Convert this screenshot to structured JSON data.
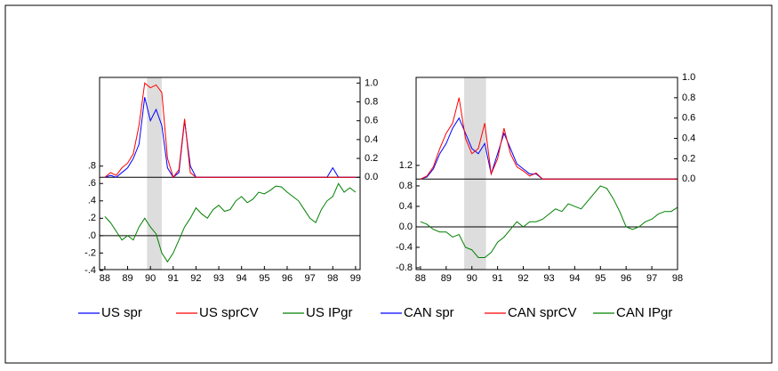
{
  "chart_data": [
    {
      "type": "line",
      "x": [
        88,
        88.25,
        88.5,
        88.75,
        89,
        89.25,
        89.5,
        89.75,
        90,
        90.25,
        90.5,
        90.75,
        91,
        91.25,
        91.5,
        91.75,
        92,
        92.25,
        92.5,
        92.75,
        93,
        93.25,
        93.5,
        93.75,
        94,
        94.25,
        94.5,
        94.75,
        95,
        95.25,
        95.5,
        95.75,
        96,
        96.25,
        96.5,
        96.75,
        97,
        97.25,
        97.5,
        97.75,
        98,
        98.25,
        98.5,
        98.75,
        99
      ],
      "xlim": [
        87.77,
        99.2
      ],
      "xticks": [
        88,
        89,
        90,
        91,
        92,
        93,
        94,
        95,
        96,
        97,
        98,
        99
      ],
      "ylim": [
        -0.39,
        1.82
      ],
      "yticks": [
        {
          "value": -0.4,
          "label": "-.4"
        },
        {
          "value": -0.2,
          "label": "-.2"
        },
        {
          "value": 0,
          "label": ".0"
        },
        {
          "value": 0.2,
          "label": ".2"
        },
        {
          "value": 0.4,
          "label": ".4"
        },
        {
          "value": 0.6,
          "label": ".6"
        },
        {
          "value": 0.8,
          "label": ".8"
        }
      ],
      "y2lim": [
        -0.98,
        1.06
      ],
      "y2ticks": [
        {
          "value": 0,
          "label": "0.0"
        },
        0.2,
        0.4,
        0.6,
        0.8,
        {
          "value": 1,
          "label": "1.0"
        }
      ],
      "shade": [
        89.85,
        90.5
      ],
      "series": [
        {
          "name": "US spr",
          "color": "#0000ff",
          "axis": "y2",
          "values": [
            0,
            0.02,
            0,
            0.05,
            0.1,
            0.2,
            0.35,
            0.85,
            0.6,
            0.72,
            0.55,
            0.1,
            0,
            0.05,
            0.6,
            0.12,
            0,
            0,
            0,
            0,
            0,
            0,
            0,
            0,
            0,
            0,
            0,
            0,
            0,
            0,
            0,
            0,
            0,
            0,
            0,
            0,
            0,
            0,
            0,
            0,
            0.1,
            0,
            0,
            0,
            0
          ]
        },
        {
          "name": "US sprCV",
          "color": "#ff0000",
          "axis": "y2",
          "values": [
            0,
            0.05,
            0.02,
            0.1,
            0.15,
            0.25,
            0.55,
            1.0,
            0.95,
            0.98,
            0.9,
            0.2,
            0,
            0.08,
            0.62,
            0.05,
            0,
            0,
            0,
            0,
            0,
            0,
            0,
            0,
            0,
            0,
            0,
            0,
            0,
            0,
            0,
            0,
            0,
            0,
            0,
            0,
            0,
            0,
            0,
            0,
            0,
            0,
            0,
            0,
            0
          ]
        },
        {
          "name": "US IPgr",
          "color": "#008000",
          "values": [
            0.22,
            0.15,
            0.05,
            -0.05,
            0,
            -0.05,
            0.1,
            0.2,
            0.1,
            0.02,
            -0.2,
            -0.3,
            -0.2,
            -0.05,
            0.1,
            0.2,
            0.32,
            0.25,
            0.2,
            0.3,
            0.35,
            0.28,
            0.3,
            0.4,
            0.45,
            0.38,
            0.42,
            0.5,
            0.48,
            0.52,
            0.57,
            0.56,
            0.5,
            0.45,
            0.4,
            0.3,
            0.2,
            0.15,
            0.3,
            0.4,
            0.45,
            0.6,
            0.5,
            0.55,
            0.5
          ]
        }
      ]
    },
    {
      "type": "line",
      "x": [
        88,
        88.25,
        88.5,
        88.75,
        89,
        89.25,
        89.5,
        89.75,
        90,
        90.25,
        90.5,
        90.75,
        91,
        91.25,
        91.5,
        91.75,
        92,
        92.25,
        92.5,
        92.75,
        93,
        93.25,
        93.5,
        93.75,
        94,
        94.25,
        94.5,
        94.75,
        95,
        95.25,
        95.5,
        95.75,
        96,
        96.25,
        96.5,
        96.75,
        97,
        97.25,
        97.5,
        97.75,
        98
      ],
      "xlim": [
        87.83,
        98.0
      ],
      "xticks": [
        88,
        89,
        90,
        91,
        92,
        93,
        94,
        95,
        96,
        97,
        98
      ],
      "ylim": [
        -0.835,
        2.92
      ],
      "yticks": [
        -0.8,
        -0.4,
        {
          "value": 0,
          "label": "0.0"
        },
        0.4,
        0.8,
        1.2
      ],
      "y2lim": [
        -0.89,
        1.0
      ],
      "y2ticks": [
        {
          "value": 0,
          "label": "0.0"
        },
        0.2,
        0.4,
        0.6,
        0.8,
        {
          "value": 1,
          "label": "1.0"
        }
      ],
      "shade": [
        89.7,
        90.55
      ],
      "series": [
        {
          "name": "CAN spr",
          "color": "#0000ff",
          "axis": "y2",
          "values": [
            0,
            0.02,
            0.1,
            0.25,
            0.35,
            0.5,
            0.6,
            0.45,
            0.3,
            0.25,
            0.35,
            0.05,
            0.25,
            0.45,
            0.3,
            0.15,
            0.1,
            0.05,
            0.05,
            0,
            0,
            0,
            0,
            0,
            0,
            0,
            0,
            0,
            0,
            0,
            0,
            0,
            0,
            0,
            0,
            0,
            0,
            0,
            0,
            0,
            0
          ]
        },
        {
          "name": "CAN sprCV",
          "color": "#ff0000",
          "axis": "y2",
          "values": [
            0,
            0.03,
            0.12,
            0.3,
            0.45,
            0.55,
            0.8,
            0.4,
            0.25,
            0.3,
            0.55,
            0.05,
            0.2,
            0.5,
            0.25,
            0.12,
            0.08,
            0.03,
            0.06,
            0,
            0,
            0,
            0,
            0,
            0,
            0,
            0,
            0,
            0,
            0,
            0,
            0,
            0,
            0,
            0,
            0,
            0,
            0,
            0,
            0,
            0
          ]
        },
        {
          "name": "CAN IPgr",
          "color": "#008000",
          "values": [
            0.1,
            0.05,
            -0.05,
            -0.1,
            -0.1,
            -0.2,
            -0.15,
            -0.4,
            -0.45,
            -0.6,
            -0.6,
            -0.5,
            -0.3,
            -0.2,
            -0.05,
            0.1,
            0,
            0.1,
            0.1,
            0.15,
            0.25,
            0.35,
            0.3,
            0.45,
            0.4,
            0.35,
            0.5,
            0.65,
            0.8,
            0.75,
            0.55,
            0.3,
            0,
            -0.05,
            0,
            0.1,
            0.15,
            0.25,
            0.3,
            0.3,
            0.38
          ]
        }
      ]
    }
  ]
}
